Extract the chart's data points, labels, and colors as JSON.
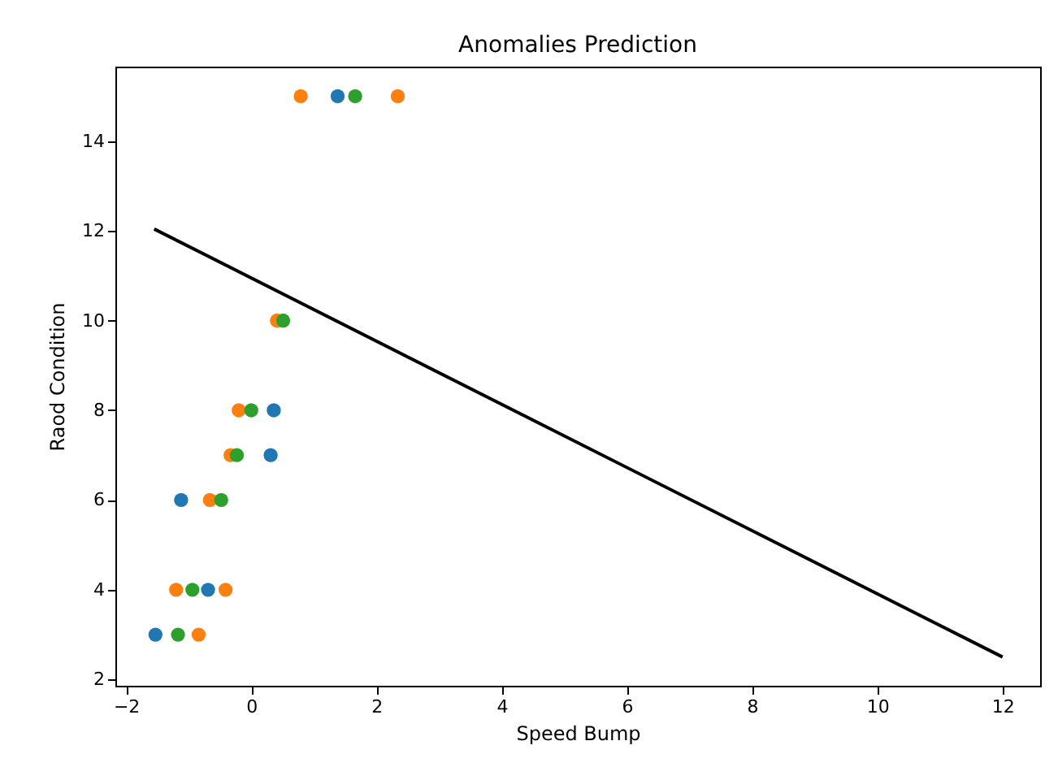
{
  "chart_data": {
    "type": "scatter",
    "title": "Anomalies Prediction",
    "xlabel": "Speed Bump",
    "ylabel": "Raod Condition",
    "xlim": [
      -2.17,
      12.6
    ],
    "ylim": [
      1.86,
      15.66
    ],
    "xticks": [
      -2,
      0,
      2,
      4,
      6,
      8,
      10,
      12
    ],
    "yticks": [
      2,
      4,
      6,
      8,
      10,
      12,
      14
    ],
    "grid": false,
    "marker": "circle",
    "series": [
      {
        "color": "#1f77b4",
        "x": [
          1.38,
          0.36,
          0.31,
          -1.12,
          -0.69,
          -1.53
        ],
        "values": [
          15,
          8,
          7,
          6,
          4,
          3
        ]
      },
      {
        "color": "#ff7f0e",
        "x": [
          0.79,
          2.34,
          0.41,
          -0.2,
          -0.33,
          -0.66,
          -1.2,
          -0.41,
          -0.84
        ],
        "values": [
          15,
          15,
          10,
          8,
          7,
          6,
          4,
          4,
          3
        ]
      },
      {
        "color": "#2ca02c",
        "x": [
          1.66,
          0.51,
          0.0,
          -0.23,
          -0.48,
          -0.94,
          -1.17
        ],
        "values": [
          15,
          10,
          8,
          7,
          6,
          4,
          3
        ]
      },
      {
        "type": "line",
        "color": "#000000",
        "line_style": "solid",
        "marker": "none",
        "x": [
          -1.55,
          12.0
        ],
        "values": [
          12.04,
          2.5
        ]
      }
    ]
  }
}
